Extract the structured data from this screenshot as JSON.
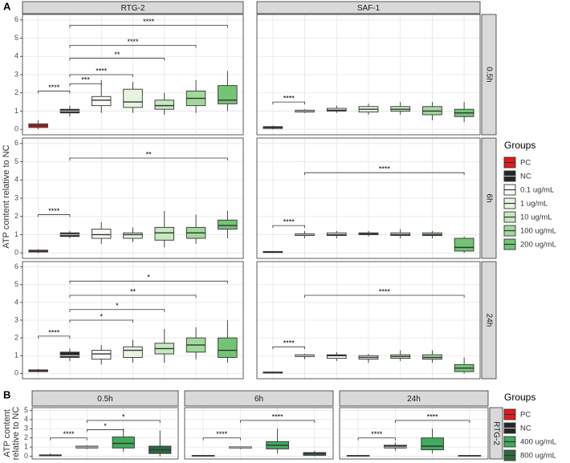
{
  "parts": [
    {
      "label": "A",
      "y_label": [
        "ATP content relative to NC"
      ],
      "columns": [
        "RTG-2",
        "SAF-1"
      ],
      "rows": [
        "0.5h",
        "6h",
        "24h"
      ],
      "legend": {
        "title": "Groups",
        "items": [
          {
            "name": "PC",
            "color": "#e41a1c"
          },
          {
            "name": "NC",
            "color": "#252525"
          },
          {
            "name": "0.1 ug/mL",
            "color": "#f7fcf5"
          },
          {
            "name": "1 ug/mL",
            "color": "#e5f5e0"
          },
          {
            "name": "10 ug/mL",
            "color": "#c7e9c0"
          },
          {
            "name": "100 ug/mL",
            "color": "#a1d99b"
          },
          {
            "name": "200 ug/mL",
            "color": "#74c476"
          }
        ]
      }
    },
    {
      "label": "B",
      "y_label": [
        "ATP content",
        "relative to NC"
      ],
      "columns": [
        "0.5h",
        "6h",
        "24h"
      ],
      "rows": [
        "RTG-2"
      ],
      "legend": {
        "title": "Groups",
        "items": [
          {
            "name": "PC",
            "color": "#e41a1c"
          },
          {
            "name": "NC",
            "color": "#252525"
          },
          {
            "name": "400 ug/mL",
            "color": "#41ab5d"
          },
          {
            "name": "800 ug/mL",
            "color": "#2d6a3e"
          }
        ]
      }
    }
  ],
  "chart_data": [
    {
      "type": "box",
      "ylim": [
        -0.3,
        6.3
      ],
      "yticks": [
        0,
        1,
        2,
        3,
        4,
        5,
        6
      ],
      "boxes": [
        [
          0,
          0.1,
          0.2,
          0.3,
          0.5
        ],
        [
          0.7,
          0.9,
          1.0,
          1.1,
          1.3
        ],
        [
          0.9,
          1.3,
          1.6,
          1.8,
          2.7
        ],
        [
          0.9,
          1.2,
          1.5,
          2.2,
          2.6
        ],
        [
          0.8,
          1.1,
          1.3,
          1.6,
          2.0
        ],
        [
          0.9,
          1.3,
          1.7,
          2.1,
          2.7
        ],
        [
          1.0,
          1.4,
          1.6,
          2.4,
          3.2
        ]
      ],
      "brackets": [
        {
          "from": 0,
          "to": 1,
          "y": 2.1,
          "label": "****"
        },
        {
          "from": 1,
          "to": 2,
          "y": 2.5,
          "label": "***"
        },
        {
          "from": 1,
          "to": 3,
          "y": 3.0,
          "label": "****"
        },
        {
          "from": 1,
          "to": 4,
          "y": 3.9,
          "label": "**"
        },
        {
          "from": 1,
          "to": 5,
          "y": 4.6,
          "label": "****"
        },
        {
          "from": 1,
          "to": 6,
          "y": 5.7,
          "label": "****"
        }
      ]
    },
    {
      "type": "box",
      "ylim": [
        -0.3,
        6.3
      ],
      "yticks": [
        0,
        1,
        2,
        3,
        4,
        5,
        6
      ],
      "boxes": [
        [
          0,
          0.05,
          0.1,
          0.15,
          0.2
        ],
        [
          0.9,
          0.95,
          1.0,
          1.05,
          1.1
        ],
        [
          0.9,
          1.0,
          1.05,
          1.15,
          1.3
        ],
        [
          0.8,
          0.95,
          1.1,
          1.25,
          1.4
        ],
        [
          0.8,
          1.0,
          1.1,
          1.25,
          1.5
        ],
        [
          0.5,
          0.8,
          1.0,
          1.25,
          1.5
        ],
        [
          0.4,
          0.7,
          0.9,
          1.1,
          1.5
        ]
      ],
      "brackets": [
        {
          "from": 0,
          "to": 1,
          "y": 1.5,
          "label": "****"
        }
      ]
    },
    {
      "type": "box",
      "ylim": [
        -0.3,
        6.3
      ],
      "yticks": [
        0,
        1,
        2,
        3,
        4,
        5,
        6
      ],
      "boxes": [
        [
          0,
          0.05,
          0.1,
          0.15,
          0.2
        ],
        [
          0.8,
          0.9,
          1.0,
          1.1,
          1.2
        ],
        [
          0.5,
          0.8,
          1.0,
          1.3,
          1.7
        ],
        [
          0.6,
          0.8,
          1.0,
          1.1,
          1.4
        ],
        [
          0.3,
          0.7,
          1.1,
          1.4,
          2.3
        ],
        [
          0.5,
          0.8,
          1.1,
          1.4,
          2.1
        ],
        [
          0.8,
          1.3,
          1.5,
          1.8,
          2.3
        ]
      ],
      "brackets": [
        {
          "from": 0,
          "to": 1,
          "y": 2.1,
          "label": "****"
        },
        {
          "from": 1,
          "to": 6,
          "y": 5.2,
          "label": "**"
        }
      ]
    },
    {
      "type": "box",
      "ylim": [
        -0.3,
        6.3
      ],
      "yticks": [
        0,
        1,
        2,
        3,
        4,
        5,
        6
      ],
      "boxes": [
        [
          0,
          0.02,
          0.05,
          0.08,
          0.1
        ],
        [
          0.8,
          0.95,
          1.0,
          1.05,
          1.2
        ],
        [
          0.8,
          0.95,
          1.0,
          1.1,
          1.2
        ],
        [
          0.9,
          1.0,
          1.05,
          1.1,
          1.2
        ],
        [
          0.8,
          0.95,
          1.0,
          1.1,
          1.3
        ],
        [
          0.8,
          0.95,
          1.0,
          1.1,
          1.2
        ],
        [
          0,
          0.1,
          0.3,
          0.8,
          0.9
        ]
      ],
      "brackets": [
        {
          "from": 0,
          "to": 1,
          "y": 1.5,
          "label": "****"
        },
        {
          "from": 1,
          "to": 6,
          "y": 4.4,
          "label": "****"
        }
      ]
    },
    {
      "type": "box",
      "ylim": [
        -0.3,
        6.3
      ],
      "yticks": [
        0,
        1,
        2,
        3,
        4,
        5,
        6
      ],
      "boxes": [
        [
          0.05,
          0.1,
          0.15,
          0.2,
          0.25
        ],
        [
          0.7,
          0.9,
          1.0,
          1.2,
          1.4
        ],
        [
          0.5,
          0.8,
          1.1,
          1.3,
          1.6
        ],
        [
          0.6,
          0.9,
          1.3,
          1.5,
          1.9
        ],
        [
          0.6,
          1.1,
          1.4,
          1.7,
          2.5
        ],
        [
          0.8,
          1.2,
          1.6,
          2.0,
          2.6
        ],
        [
          0.6,
          0.9,
          1.3,
          2.0,
          3.0
        ]
      ],
      "brackets": [
        {
          "from": 0,
          "to": 1,
          "y": 2.1,
          "label": "****"
        },
        {
          "from": 1,
          "to": 3,
          "y": 3.0,
          "label": "*"
        },
        {
          "from": 1,
          "to": 4,
          "y": 3.6,
          "label": "*"
        },
        {
          "from": 1,
          "to": 5,
          "y": 4.4,
          "label": "**"
        },
        {
          "from": 1,
          "to": 6,
          "y": 5.2,
          "label": "*"
        }
      ]
    },
    {
      "type": "box",
      "ylim": [
        -0.3,
        6.3
      ],
      "yticks": [
        0,
        1,
        2,
        3,
        4,
        5,
        6
      ],
      "boxes": [
        [
          0,
          0.02,
          0.05,
          0.08,
          0.1
        ],
        [
          0.8,
          0.95,
          1.0,
          1.05,
          1.1
        ],
        [
          0.7,
          0.85,
          1.0,
          1.05,
          1.2
        ],
        [
          0.6,
          0.8,
          0.9,
          1.0,
          1.1
        ],
        [
          0.7,
          0.85,
          0.95,
          1.05,
          1.3
        ],
        [
          0.6,
          0.8,
          0.9,
          1.05,
          1.3
        ],
        [
          0,
          0.1,
          0.3,
          0.5,
          0.9
        ]
      ],
      "brackets": [
        {
          "from": 0,
          "to": 1,
          "y": 1.5,
          "label": "****"
        },
        {
          "from": 1,
          "to": 6,
          "y": 4.4,
          "label": "****"
        }
      ]
    },
    {
      "type": "box",
      "ylim": [
        -0.3,
        5.3
      ],
      "yticks": [
        0,
        1,
        2,
        3,
        4,
        5
      ],
      "boxes": [
        [
          0,
          0.05,
          0.1,
          0.15,
          0.3
        ],
        [
          0.8,
          0.9,
          1.0,
          1.1,
          1.2
        ],
        [
          0.5,
          0.9,
          1.4,
          2.1,
          3.0
        ],
        [
          0,
          0.3,
          0.7,
          1.1,
          2.8
        ]
      ],
      "brackets": [
        {
          "from": 0,
          "to": 1,
          "y": 2.0,
          "label": "****"
        },
        {
          "from": 1,
          "to": 2,
          "y": 2.9,
          "label": "*"
        },
        {
          "from": 1,
          "to": 3,
          "y": 3.9,
          "label": "*"
        }
      ]
    },
    {
      "type": "box",
      "ylim": [
        -0.3,
        5.3
      ],
      "yticks": [
        0,
        1,
        2,
        3,
        4,
        5
      ],
      "boxes": [
        [
          0,
          0.02,
          0.05,
          0.08,
          0.1
        ],
        [
          0.8,
          0.9,
          1.0,
          1.05,
          1.1
        ],
        [
          0.3,
          0.8,
          1.2,
          1.6,
          3.0
        ],
        [
          0,
          0.1,
          0.3,
          0.4,
          0.6
        ]
      ],
      "brackets": [
        {
          "from": 0,
          "to": 1,
          "y": 2.0,
          "label": "****"
        },
        {
          "from": 1,
          "to": 3,
          "y": 3.9,
          "label": "****"
        }
      ]
    },
    {
      "type": "box",
      "ylim": [
        -0.3,
        5.3
      ],
      "yticks": [
        0,
        1,
        2,
        3,
        4,
        5
      ],
      "boxes": [
        [
          0,
          0.02,
          0.05,
          0.08,
          0.1
        ],
        [
          0.6,
          0.9,
          1.0,
          1.2,
          1.5
        ],
        [
          0.3,
          0.7,
          1.1,
          2.0,
          3.0
        ],
        [
          0,
          0.02,
          0.05,
          0.08,
          0.1
        ]
      ],
      "brackets": [
        {
          "from": 0,
          "to": 1,
          "y": 2.0,
          "label": "****"
        },
        {
          "from": 1,
          "to": 3,
          "y": 3.9,
          "label": "****"
        }
      ]
    }
  ]
}
